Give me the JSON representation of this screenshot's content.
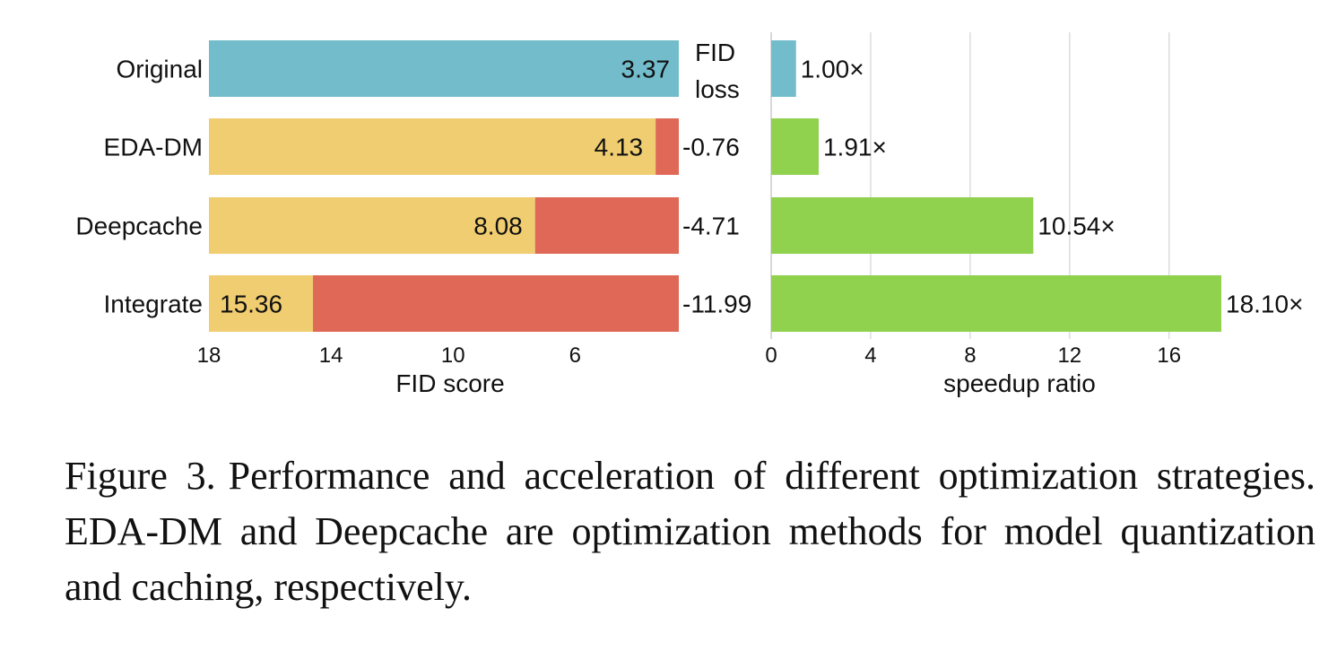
{
  "colors": {
    "original": "#72bccb",
    "fid": "#efcd70",
    "loss": "#df6857",
    "speedup": "#90d14e",
    "grid": "#dddddd"
  },
  "chart_data": [
    {
      "type": "bar",
      "orientation": "horizontal",
      "stacked": true,
      "xlabel": "FID score",
      "x_reversed": true,
      "xlim": [
        18,
        2.6
      ],
      "xticks": [
        18,
        14,
        10,
        6
      ],
      "categories": [
        "Original",
        "EDA-DM",
        "Deepcache",
        "Integrate"
      ],
      "fid_values": [
        3.37,
        4.13,
        8.08,
        15.36
      ],
      "loss_values": [
        null,
        -0.76,
        -4.71,
        -11.99
      ],
      "fid_labels": [
        "3.37",
        "4.13",
        "8.08",
        "15.36"
      ],
      "loss_labels": [
        "",
        "-0.76",
        "-4.71",
        "-11.99"
      ],
      "loss_header_line1": "FID",
      "loss_header_line2": "loss"
    },
    {
      "type": "bar",
      "orientation": "horizontal",
      "xlabel": "speedup ratio",
      "xlim": [
        0,
        18.1
      ],
      "xticks": [
        0,
        4,
        8,
        12,
        16
      ],
      "grid": true,
      "categories": [
        "Original",
        "EDA-DM",
        "Deepcache",
        "Integrate"
      ],
      "values": [
        1.0,
        1.91,
        10.54,
        18.1
      ],
      "labels": [
        "1.00×",
        "1.91×",
        "10.54×",
        "18.10×"
      ]
    }
  ],
  "caption": {
    "label": "Figure 3.",
    "text": "Performance and acceleration of different optimization strategies. EDA-DM and Deepcache are optimization methods for model quantization and caching, respectively."
  }
}
